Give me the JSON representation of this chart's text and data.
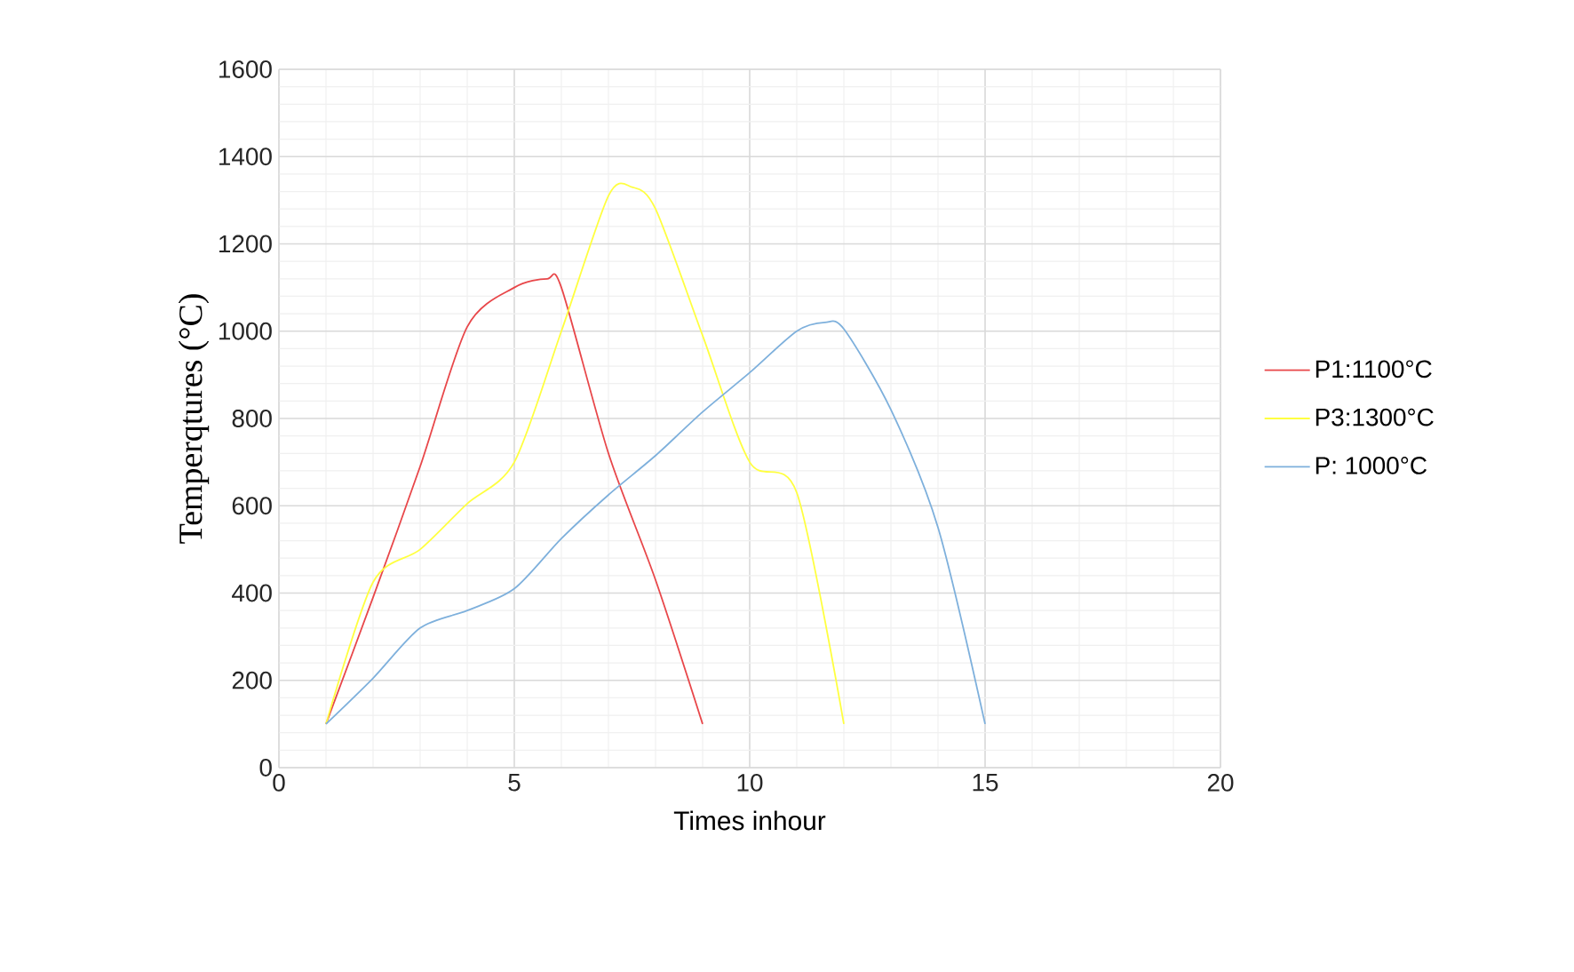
{
  "chart_data": {
    "type": "line",
    "xlabel": "Times inhour",
    "ylabel": "Temperqtures (°C)",
    "xlim": [
      0,
      20
    ],
    "xticks": [
      0,
      5,
      10,
      15,
      20
    ],
    "ylim": [
      0,
      1600
    ],
    "yticks": [
      0,
      200,
      400,
      600,
      800,
      1000,
      1200,
      1400,
      1600
    ],
    "grid": true,
    "legend": "right",
    "marker": "none",
    "line_style": "solid",
    "series": [
      {
        "name": "P1:1100°C",
        "color": "#e8474a",
        "x": [
          1,
          2,
          3,
          4,
          5,
          5.7,
          6,
          7,
          8,
          9
        ],
        "values": [
          100,
          390,
          690,
          1010,
          1100,
          1120,
          1100,
          720,
          430,
          100
        ]
      },
      {
        "name": "P3:1300°C",
        "color": "#ffff40",
        "x": [
          1,
          2,
          3,
          4,
          5,
          6,
          7,
          7.5,
          8,
          9,
          10,
          11,
          12
        ],
        "values": [
          100,
          425,
          500,
          605,
          700,
          1000,
          1310,
          1330,
          1280,
          990,
          700,
          630,
          100
        ]
      },
      {
        "name": "P: 1000°C",
        "color": "#7eb0dc",
        "x": [
          1,
          2,
          3,
          4,
          5,
          6,
          7,
          8,
          9,
          10,
          11,
          11.6,
          12,
          13,
          14,
          15
        ],
        "values": [
          100,
          205,
          320,
          360,
          410,
          525,
          625,
          715,
          815,
          905,
          1000,
          1020,
          1005,
          820,
          550,
          100
        ]
      }
    ]
  }
}
